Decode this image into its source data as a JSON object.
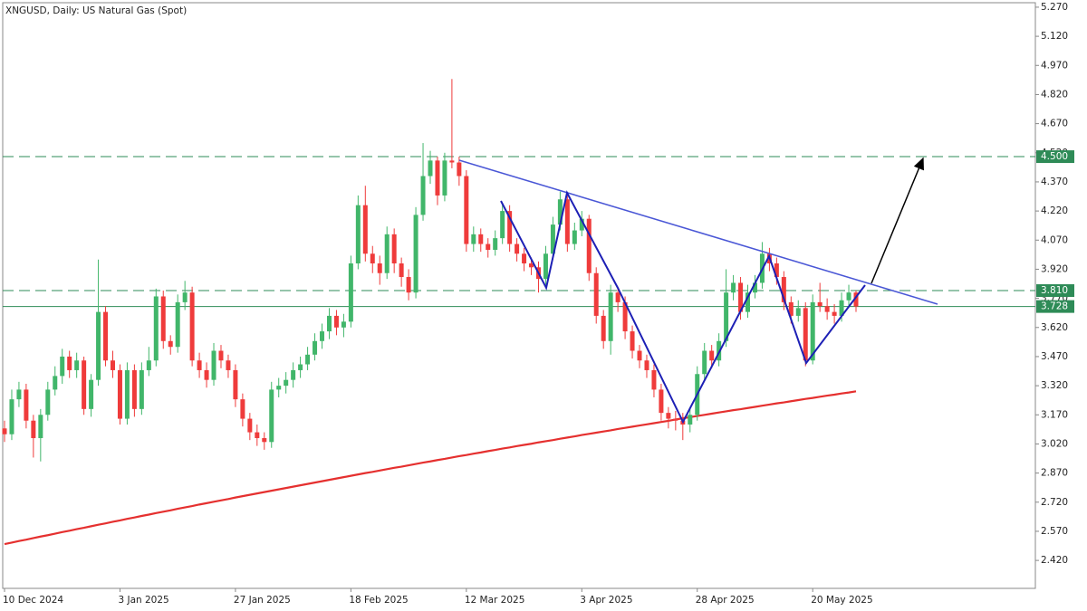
{
  "chart_data": {
    "type": "candlestick",
    "title": "XNGUSD, Daily:  US Natural Gas (Spot)",
    "categories": [
      "10 Dec 2024",
      null,
      null,
      null,
      null,
      null,
      null,
      null,
      null,
      null,
      null,
      null,
      null,
      null,
      null,
      null,
      "3 Jan 2025",
      null,
      null,
      null,
      null,
      null,
      null,
      null,
      null,
      null,
      null,
      null,
      null,
      null,
      null,
      null,
      "27 Jan 2025",
      null,
      null,
      null,
      null,
      null,
      null,
      null,
      null,
      null,
      null,
      null,
      null,
      null,
      null,
      null,
      "18 Feb 2025",
      null,
      null,
      null,
      null,
      null,
      null,
      null,
      null,
      null,
      null,
      null,
      null,
      null,
      null,
      null,
      "12 Mar 2025",
      null,
      null,
      null,
      null,
      null,
      null,
      null,
      null,
      null,
      null,
      null,
      null,
      null,
      null,
      null,
      "3 Apr 2025",
      null,
      null,
      null,
      null,
      null,
      null,
      null,
      null,
      null,
      null,
      null,
      null,
      null,
      null,
      null,
      "28 Apr 2025",
      null,
      null,
      null,
      null,
      null,
      null,
      null,
      null,
      null,
      null,
      null,
      null,
      null,
      null,
      null,
      "20 May 2025",
      null,
      null,
      null,
      null,
      null,
      null
    ],
    "open": [
      3.1,
      3.07,
      3.25,
      3.3,
      3.14,
      3.05,
      3.17,
      3.3,
      3.37,
      3.47,
      3.4,
      3.45,
      3.2,
      3.35,
      3.7,
      3.45,
      3.4,
      3.15,
      3.4,
      3.2,
      3.4,
      3.45,
      3.78,
      3.55,
      3.52,
      3.75,
      3.8,
      3.45,
      3.4,
      3.35,
      3.5,
      3.45,
      3.4,
      3.25,
      3.15,
      3.08,
      3.05,
      3.03,
      3.3,
      3.32,
      3.35,
      3.4,
      3.43,
      3.48,
      3.55,
      3.6,
      3.68,
      3.62,
      3.65,
      3.95,
      4.25,
      4.0,
      3.95,
      3.9,
      4.1,
      3.95,
      3.88,
      3.8,
      4.2,
      4.4,
      4.48,
      4.3,
      4.48,
      4.47,
      4.4,
      4.05,
      4.1,
      4.05,
      4.02,
      4.08,
      4.22,
      4.05,
      4.0,
      3.95,
      3.93,
      3.87,
      4.0,
      4.15,
      4.28,
      4.05,
      4.12,
      4.18,
      3.9,
      3.68,
      3.55,
      3.8,
      3.75,
      3.6,
      3.5,
      3.45,
      3.4,
      3.3,
      3.18,
      3.15,
      3.14,
      3.12,
      3.17,
      3.38,
      3.5,
      3.45,
      3.55,
      3.8,
      3.85,
      3.7,
      3.8,
      3.85,
      4.0,
      3.95,
      3.88,
      3.75,
      3.68,
      3.72,
      3.45,
      3.75,
      3.73,
      3.7,
      3.68,
      3.76,
      3.8
    ],
    "high": [
      3.14,
      3.3,
      3.34,
      3.33,
      3.17,
      3.2,
      3.34,
      3.42,
      3.51,
      3.5,
      3.49,
      3.47,
      3.38,
      3.97,
      3.73,
      3.5,
      3.43,
      3.44,
      3.43,
      3.44,
      3.52,
      3.82,
      3.81,
      3.58,
      3.79,
      3.86,
      3.83,
      3.49,
      3.44,
      3.54,
      3.53,
      3.48,
      3.43,
      3.28,
      3.18,
      3.12,
      3.08,
      3.34,
      3.36,
      3.39,
      3.44,
      3.47,
      3.52,
      3.59,
      3.64,
      3.72,
      3.71,
      3.69,
      3.99,
      4.3,
      4.35,
      4.04,
      3.99,
      4.14,
      4.13,
      3.98,
      3.92,
      4.24,
      4.57,
      4.53,
      4.5,
      4.52,
      4.9,
      4.5,
      4.43,
      4.14,
      4.13,
      4.08,
      4.12,
      4.26,
      4.25,
      4.08,
      4.03,
      3.98,
      3.96,
      4.04,
      4.19,
      4.32,
      4.3,
      4.16,
      4.22,
      4.2,
      3.93,
      3.71,
      3.84,
      3.83,
      3.78,
      3.63,
      3.53,
      3.48,
      3.43,
      3.33,
      3.21,
      3.19,
      3.18,
      3.21,
      3.42,
      3.54,
      3.53,
      3.59,
      3.92,
      3.89,
      3.88,
      3.84,
      3.89,
      4.06,
      4.03,
      3.98,
      3.91,
      3.78,
      3.76,
      3.75,
      3.79,
      3.85,
      3.77,
      3.74,
      3.8,
      3.84,
      3.81
    ],
    "low": [
      3.03,
      3.04,
      3.21,
      3.1,
      2.95,
      2.93,
      3.14,
      3.27,
      3.33,
      3.36,
      3.36,
      3.17,
      3.16,
      3.32,
      3.42,
      3.36,
      3.12,
      3.12,
      3.16,
      3.17,
      3.37,
      3.42,
      3.51,
      3.48,
      3.49,
      3.71,
      3.42,
      3.36,
      3.31,
      3.32,
      3.41,
      3.36,
      3.21,
      3.11,
      3.04,
      3.01,
      2.99,
      3.0,
      3.26,
      3.28,
      3.31,
      3.36,
      3.4,
      3.45,
      3.51,
      3.56,
      3.58,
      3.57,
      3.62,
      3.92,
      3.96,
      3.9,
      3.84,
      3.87,
      3.9,
      3.83,
      3.76,
      3.77,
      4.17,
      4.36,
      4.25,
      4.27,
      4.44,
      4.35,
      4.01,
      4.01,
      4.01,
      3.98,
      3.99,
      4.05,
      4.01,
      3.96,
      3.91,
      3.89,
      3.8,
      3.84,
      3.97,
      4.12,
      4.01,
      4.02,
      4.09,
      3.86,
      3.64,
      3.51,
      3.48,
      3.7,
      3.56,
      3.46,
      3.41,
      3.36,
      3.26,
      3.14,
      3.1,
      3.09,
      3.04,
      3.08,
      3.14,
      3.35,
      3.41,
      3.42,
      3.52,
      3.76,
      3.66,
      3.67,
      3.77,
      3.82,
      3.91,
      3.84,
      3.71,
      3.64,
      3.65,
      3.42,
      3.43,
      3.7,
      3.66,
      3.64,
      3.65,
      3.73,
      3.7
    ],
    "close": [
      3.07,
      3.25,
      3.3,
      3.14,
      3.05,
      3.17,
      3.3,
      3.37,
      3.47,
      3.4,
      3.45,
      3.2,
      3.35,
      3.7,
      3.45,
      3.4,
      3.15,
      3.4,
      3.2,
      3.4,
      3.45,
      3.78,
      3.55,
      3.52,
      3.75,
      3.8,
      3.45,
      3.4,
      3.35,
      3.5,
      3.45,
      3.4,
      3.25,
      3.15,
      3.08,
      3.05,
      3.03,
      3.3,
      3.32,
      3.35,
      3.4,
      3.43,
      3.48,
      3.55,
      3.6,
      3.68,
      3.62,
      3.65,
      3.95,
      4.25,
      4.0,
      3.95,
      3.9,
      4.1,
      3.95,
      3.88,
      3.8,
      4.2,
      4.4,
      4.48,
      4.3,
      4.48,
      4.47,
      4.4,
      4.05,
      4.1,
      4.05,
      4.02,
      4.08,
      4.22,
      4.05,
      4.0,
      3.95,
      3.93,
      3.87,
      4.0,
      4.15,
      4.28,
      4.05,
      4.12,
      4.18,
      3.9,
      3.68,
      3.55,
      3.8,
      3.75,
      3.6,
      3.5,
      3.45,
      3.4,
      3.3,
      3.18,
      3.15,
      3.14,
      3.12,
      3.17,
      3.38,
      3.5,
      3.45,
      3.55,
      3.8,
      3.85,
      3.7,
      3.8,
      3.85,
      4.0,
      3.95,
      3.88,
      3.75,
      3.68,
      3.72,
      3.45,
      3.75,
      3.73,
      3.7,
      3.68,
      3.76,
      3.8,
      3.728
    ],
    "ma_values": [
      2.504,
      2.512,
      2.52,
      2.527,
      2.535,
      2.543,
      2.55,
      2.558,
      2.566,
      2.573,
      2.581,
      2.588,
      2.596,
      2.604,
      2.611,
      2.619,
      2.626,
      2.634,
      2.641,
      2.649,
      2.656,
      2.664,
      2.671,
      2.678,
      2.686,
      2.693,
      2.7,
      2.708,
      2.715,
      2.722,
      2.729,
      2.736,
      2.744,
      2.751,
      2.758,
      2.765,
      2.772,
      2.779,
      2.786,
      2.793,
      2.8,
      2.807,
      2.814,
      2.821,
      2.828,
      2.835,
      2.842,
      2.849,
      2.856,
      2.863,
      2.87,
      2.876,
      2.883,
      2.89,
      2.897,
      2.903,
      2.91,
      2.917,
      2.924,
      2.93,
      2.937,
      2.943,
      2.95,
      2.957,
      2.963,
      2.97,
      2.976,
      2.983,
      2.989,
      2.996,
      3.002,
      3.009,
      3.015,
      3.021,
      3.028,
      3.034,
      3.04,
      3.047,
      3.053,
      3.059,
      3.066,
      3.072,
      3.078,
      3.084,
      3.09,
      3.097,
      3.103,
      3.109,
      3.115,
      3.121,
      3.127,
      3.133,
      3.139,
      3.146,
      3.152,
      3.158,
      3.164,
      3.17,
      3.176,
      3.182,
      3.188,
      3.194,
      3.199,
      3.205,
      3.211,
      3.217,
      3.223,
      3.229,
      3.234,
      3.24,
      3.246,
      3.252,
      3.257,
      3.263,
      3.269,
      3.274,
      3.28,
      3.285,
      3.291
    ],
    "up_color": "#41b66a",
    "down_color": "#ef3b3b",
    "ma_color": "#e5302f",
    "level_color": "#2e8b57",
    "levels": [
      {
        "value": 4.5,
        "label": "4.500"
      },
      {
        "value": 3.81,
        "label": "3.810"
      }
    ],
    "current_price": 3.728,
    "ylim": [
      2.276,
      5.293
    ],
    "yticks": [
      {
        "value": 5.27,
        "label": "5.270"
      },
      {
        "value": 5.12,
        "label": "5.120"
      },
      {
        "value": 4.97,
        "label": "4.970"
      },
      {
        "value": 4.82,
        "label": "4.820"
      },
      {
        "value": 4.67,
        "label": "4.670"
      },
      {
        "value": 4.52,
        "label": "4.520"
      },
      {
        "value": 4.37,
        "label": "4.370"
      },
      {
        "value": 4.22,
        "label": "4.220"
      },
      {
        "value": 4.07,
        "label": "4.070"
      },
      {
        "value": 3.92,
        "label": "3.920"
      },
      {
        "value": 3.77,
        "label": "3.770"
      },
      {
        "value": 3.62,
        "label": "3.620"
      },
      {
        "value": 3.47,
        "label": "3.470"
      },
      {
        "value": 3.32,
        "label": "3.320"
      },
      {
        "value": 3.17,
        "label": "3.170"
      },
      {
        "value": 3.02,
        "label": "3.020"
      },
      {
        "value": 2.87,
        "label": "2.870"
      },
      {
        "value": 2.72,
        "label": "2.720"
      },
      {
        "value": 2.57,
        "label": "2.570"
      },
      {
        "value": 2.42,
        "label": "2.420"
      }
    ]
  }
}
